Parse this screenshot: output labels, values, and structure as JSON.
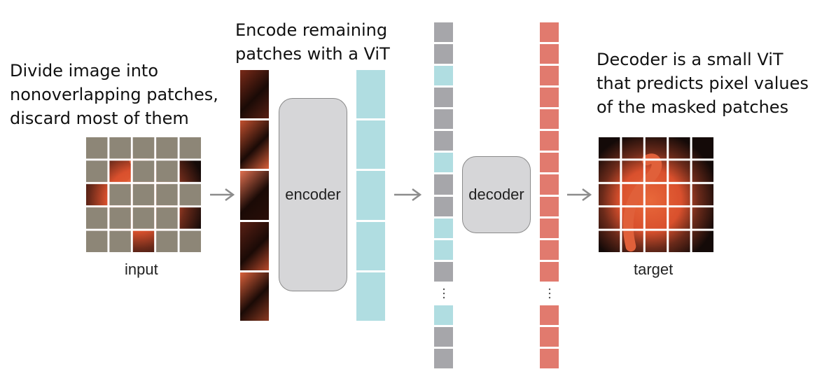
{
  "captions": {
    "divide": [
      "Divide image into",
      "nonoverlapping patches,",
      "discard most of them"
    ],
    "encode": [
      "Encode remaining",
      "patches with a ViT"
    ],
    "decode": [
      "Decoder is a small ViT",
      "that predicts pixel values",
      "of the masked patches"
    ]
  },
  "labels": {
    "input": "input",
    "encoder": "encoder",
    "decoder": "decoder",
    "target": "target"
  },
  "input_mask": [
    [
      1,
      1,
      1,
      1,
      1
    ],
    [
      1,
      0,
      1,
      1,
      0
    ],
    [
      0,
      1,
      1,
      1,
      1
    ],
    [
      1,
      1,
      1,
      1,
      0
    ],
    [
      1,
      1,
      0,
      1,
      1
    ]
  ],
  "mid_column_tokens": [
    "gray",
    "gray",
    "blue",
    "gray",
    "gray",
    "gray",
    "blue",
    "gray",
    "gray",
    "blue",
    "blue",
    "gray",
    "ellipsis",
    "blue",
    "gray",
    "gray"
  ],
  "colors": {
    "masked": "#8d8677",
    "token_blue": "#b0dde1",
    "token_gray": "#a6a6aa",
    "token_red": "#e17a6e",
    "box": "#d6d6d8",
    "arrow": "#8c8c8c"
  }
}
